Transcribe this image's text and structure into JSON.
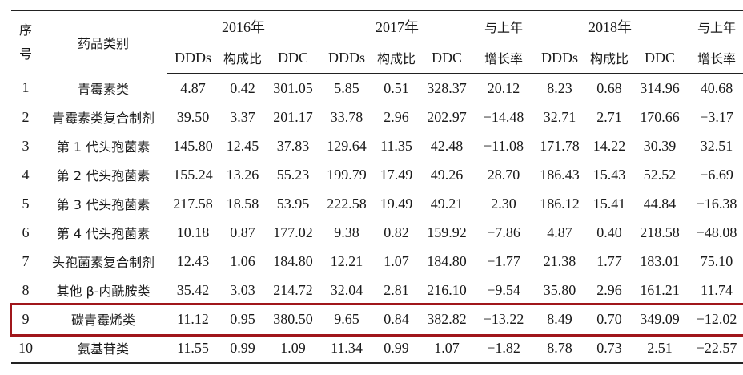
{
  "header": {
    "col_index_top": "序",
    "col_index_bottom": "号",
    "col_category": "药品类别",
    "year_2016": "2016年",
    "year_2017": "2017年",
    "year_2018": "2018年",
    "growth_top": "与上年",
    "growth_bottom": "增长率",
    "sub_ddds": "DDDs",
    "sub_ratio": "构成比",
    "sub_ddc": "DDC"
  },
  "rows": [
    {
      "no": "1",
      "name": "青霉素类",
      "v": [
        "4.87",
        "0.42",
        "301.05",
        "5.85",
        "0.51",
        "328.37",
        "20.12",
        "8.23",
        "0.68",
        "314.96",
        "40.68"
      ]
    },
    {
      "no": "2",
      "name": "青霉素类复合制剂",
      "v": [
        "39.50",
        "3.37",
        "201.17",
        "33.78",
        "2.96",
        "202.97",
        "−14.48",
        "32.71",
        "2.71",
        "170.66",
        "−3.17"
      ]
    },
    {
      "no": "3",
      "name": "第 1 代头孢菌素",
      "v": [
        "145.80",
        "12.45",
        "37.83",
        "129.64",
        "11.35",
        "42.48",
        "−11.08",
        "171.78",
        "14.22",
        "30.39",
        "32.51"
      ]
    },
    {
      "no": "4",
      "name": "第 2 代头孢菌素",
      "v": [
        "155.24",
        "13.26",
        "55.23",
        "199.79",
        "17.49",
        "49.26",
        "28.70",
        "186.43",
        "15.43",
        "52.52",
        "−6.69"
      ]
    },
    {
      "no": "5",
      "name": "第 3 代头孢菌素",
      "v": [
        "217.58",
        "18.58",
        "53.95",
        "222.58",
        "19.49",
        "49.21",
        "2.30",
        "186.12",
        "15.41",
        "44.84",
        "−16.38"
      ]
    },
    {
      "no": "6",
      "name": "第 4 代头孢菌素",
      "v": [
        "10.18",
        "0.87",
        "177.02",
        "9.38",
        "0.82",
        "159.92",
        "−7.86",
        "4.87",
        "0.40",
        "218.58",
        "−48.08"
      ]
    },
    {
      "no": "7",
      "name": "头孢菌素复合制剂",
      "v": [
        "12.43",
        "1.06",
        "184.80",
        "12.21",
        "1.07",
        "184.80",
        "−1.77",
        "21.38",
        "1.77",
        "183.01",
        "75.10"
      ]
    },
    {
      "no": "8",
      "name": "其他 β-内酰胺类",
      "v": [
        "35.42",
        "3.03",
        "214.72",
        "32.04",
        "2.81",
        "216.10",
        "−9.54",
        "35.80",
        "2.96",
        "161.21",
        "11.74"
      ]
    },
    {
      "no": "9",
      "name": "碳青霉烯类",
      "v": [
        "11.12",
        "0.95",
        "380.50",
        "9.65",
        "0.84",
        "382.82",
        "−13.22",
        "8.49",
        "0.70",
        "349.09",
        "−12.02"
      ]
    },
    {
      "no": "10",
      "name": "氨基苷类",
      "v": [
        "11.55",
        "0.99",
        "1.09",
        "11.34",
        "0.99",
        "1.07",
        "−1.82",
        "8.78",
        "0.73",
        "2.51",
        "−22.57"
      ]
    }
  ],
  "highlight": {
    "row_no": "9",
    "color": "#a0161b"
  }
}
